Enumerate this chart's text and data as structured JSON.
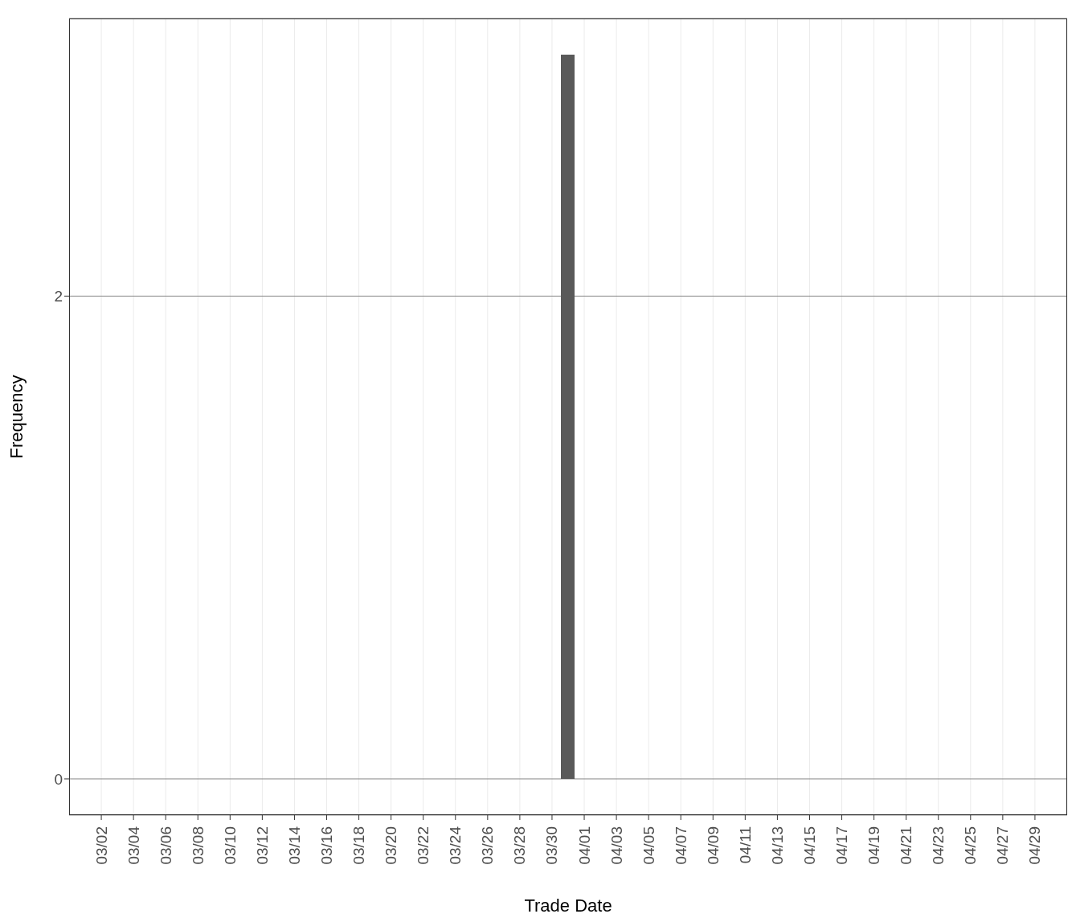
{
  "chart_data": {
    "type": "bar",
    "xlabel": "Trade Date",
    "ylabel": "Frequency",
    "x": [
      "--03-31"
    ],
    "values": [
      3
    ],
    "color": "#595959",
    "xlim": [
      "--02-28",
      "--05-01"
    ],
    "xticks": [
      {
        "value": "--03-02",
        "label": "03/02"
      },
      {
        "value": "--03-04",
        "label": "03/04"
      },
      {
        "value": "--03-06",
        "label": "03/06"
      },
      {
        "value": "--03-08",
        "label": "03/08"
      },
      {
        "value": "--03-10",
        "label": "03/10"
      },
      {
        "value": "--03-12",
        "label": "03/12"
      },
      {
        "value": "--03-14",
        "label": "03/14"
      },
      {
        "value": "--03-16",
        "label": "03/16"
      },
      {
        "value": "--03-18",
        "label": "03/18"
      },
      {
        "value": "--03-20",
        "label": "03/20"
      },
      {
        "value": "--03-22",
        "label": "03/22"
      },
      {
        "value": "--03-24",
        "label": "03/24"
      },
      {
        "value": "--03-26",
        "label": "03/26"
      },
      {
        "value": "--03-28",
        "label": "03/28"
      },
      {
        "value": "--03-30",
        "label": "03/30"
      },
      {
        "value": "--04-01",
        "label": "04/01"
      },
      {
        "value": "--04-03",
        "label": "04/03"
      },
      {
        "value": "--04-05",
        "label": "04/05"
      },
      {
        "value": "--04-07",
        "label": "04/07"
      },
      {
        "value": "--04-09",
        "label": "04/09"
      },
      {
        "value": "--04-11",
        "label": "04/11"
      },
      {
        "value": "--04-13",
        "label": "04/13"
      },
      {
        "value": "--04-15",
        "label": "04/15"
      },
      {
        "value": "--04-17",
        "label": "04/17"
      },
      {
        "value": "--04-19",
        "label": "04/19"
      },
      {
        "value": "--04-21",
        "label": "04/21"
      },
      {
        "value": "--04-23",
        "label": "04/23"
      },
      {
        "value": "--04-25",
        "label": "04/25"
      },
      {
        "value": "--04-27",
        "label": "04/27"
      },
      {
        "value": "--04-29",
        "label": "04/29"
      }
    ],
    "ylim": [
      -0.15,
      3.15
    ],
    "yticks": [
      0,
      2
    ],
    "grid": true
  }
}
